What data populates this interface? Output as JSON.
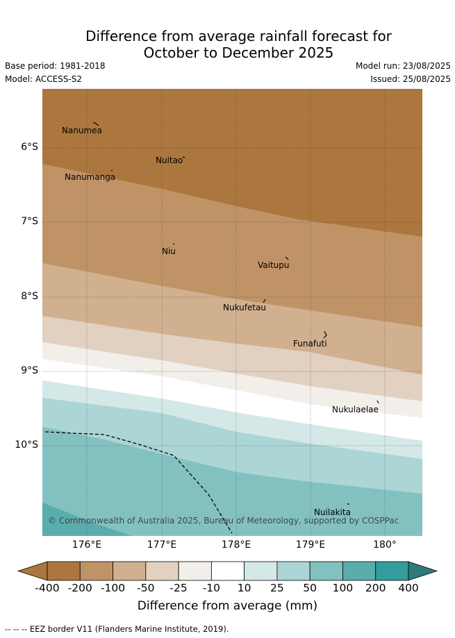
{
  "title_line1": "Difference from average rainfall forecast for",
  "title_line2": "October to December 2025",
  "base_period": "Base period: 1981-2018",
  "model": "Model: ACCESS-S2",
  "model_run": "Model run: 23/08/2025",
  "issued": "Issued: 25/08/2025",
  "copyright": "© Commonwealth of Australia 2025, Bureau of Meteorology, supported by COSPPac",
  "latitude_labels": [
    "6°S",
    "7°S",
    "8°S",
    "9°S",
    "10°S"
  ],
  "longitude_labels": [
    "176°E",
    "177°E",
    "178°E",
    "179°E",
    "180°"
  ],
  "islands": [
    {
      "name": "Nanumea"
    },
    {
      "name": "Nuitao"
    },
    {
      "name": "Nanumanga"
    },
    {
      "name": "Niu"
    },
    {
      "name": "Vaitupu"
    },
    {
      "name": "Nukufetau"
    },
    {
      "name": "Funafuti"
    },
    {
      "name": "Nukulaelae"
    },
    {
      "name": "Nuilakita"
    }
  ],
  "colorbar": {
    "title": "Difference from average (mm)",
    "tick_labels": [
      "-400",
      "-200",
      "-100",
      "-50",
      "-25",
      "-10",
      "10",
      "25",
      "50",
      "100",
      "200",
      "400"
    ],
    "colors": [
      "#ac773e",
      "#ac773e",
      "#c09367",
      "#d1b090",
      "#e2d1c1",
      "#f2eeea",
      "#ffffff",
      "#d4e8e8",
      "#acd5d5",
      "#83c1c1",
      "#5aadad",
      "#339c9c",
      "#2e7b7b"
    ]
  },
  "footnote": "--  --  -- EEZ border V11 (Flanders Marine Institute, 2019)."
}
